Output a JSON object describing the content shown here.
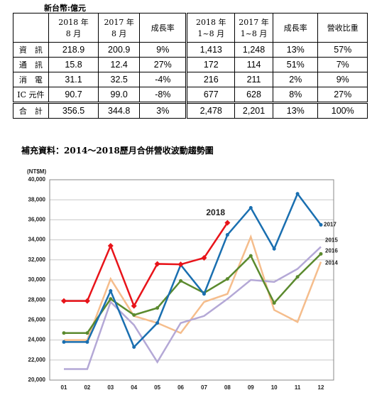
{
  "unit": "新台幣:億元",
  "table": {
    "header": [
      "",
      "2018 年\n8 月",
      "2017 年\n8 月",
      "成長率",
      "2018 年\n1~8 月",
      "2017 年\n1~8 月",
      "成長率",
      "營收比重"
    ],
    "rows": [
      [
        "資　訊",
        "218.9",
        "200.9",
        "9%",
        "1,413",
        "1,248",
        "13%",
        "57%"
      ],
      [
        "通　訊",
        "15.8",
        "12.4",
        "27%",
        "172",
        "114",
        "51%",
        "7%"
      ],
      [
        "消　電",
        "31.1",
        "32.5",
        "-4%",
        "216",
        "211",
        "2%",
        "9%"
      ],
      [
        "IC 元件",
        "90.7",
        "99.0",
        "-8%",
        "677",
        "628",
        "8%",
        "27%"
      ],
      [
        "合　計",
        "356.5",
        "344.8",
        "3%",
        "2,478",
        "2,201",
        "13%",
        "100%"
      ]
    ]
  },
  "chart_data": {
    "type": "line",
    "title": "補充資料：2014～2018歷月合併營收波動趨勢圖",
    "y_label": "(NT$M)",
    "categories": [
      "01",
      "02",
      "03",
      "04",
      "05",
      "06",
      "07",
      "08",
      "09",
      "10",
      "11",
      "12"
    ],
    "ylim": [
      20000,
      40000
    ],
    "yticks": [
      {
        "value": 20000,
        "label": "20,000"
      },
      {
        "value": 22000,
        "label": "22,000"
      },
      {
        "value": 24000,
        "label": "24,000"
      },
      {
        "value": 26000,
        "label": "26,000"
      },
      {
        "value": 28000,
        "label": "28,000"
      },
      {
        "value": 30000,
        "label": "30,000"
      },
      {
        "value": 32000,
        "label": "32,000"
      },
      {
        "value": 34000,
        "label": "34,000"
      },
      {
        "value": 36000,
        "label": "36,000"
      },
      {
        "value": 38000,
        "label": "38,000"
      },
      {
        "value": 40000,
        "label": "40,000"
      }
    ],
    "grid": true,
    "series": [
      {
        "name": "2014",
        "color": "#f5bd8c",
        "values": [
          24000,
          24000,
          30100,
          26400,
          25700,
          24700,
          27800,
          28600,
          34300,
          27000,
          25800,
          31800
        ]
      },
      {
        "name": "2015",
        "color": "#b4a8d6",
        "values": [
          21100,
          21100,
          27800,
          25500,
          21800,
          25700,
          26400,
          28100,
          30000,
          29800,
          31100,
          33300
        ]
      },
      {
        "name": "2016",
        "color": "#5b8a2e",
        "values": [
          24700,
          24700,
          28100,
          26500,
          27200,
          29900,
          28700,
          30100,
          32400,
          27700,
          30300,
          32600
        ]
      },
      {
        "name": "2017",
        "color": "#1a6fb0",
        "values": [
          23800,
          23800,
          28900,
          23300,
          25700,
          31500,
          28600,
          34500,
          37200,
          33100,
          38600,
          35500
        ]
      },
      {
        "name": "2018",
        "color": "#e8141a",
        "values": [
          27900,
          27900,
          33400,
          27400,
          31600,
          31550,
          32200,
          35700,
          null,
          null,
          null,
          null
        ]
      }
    ]
  }
}
